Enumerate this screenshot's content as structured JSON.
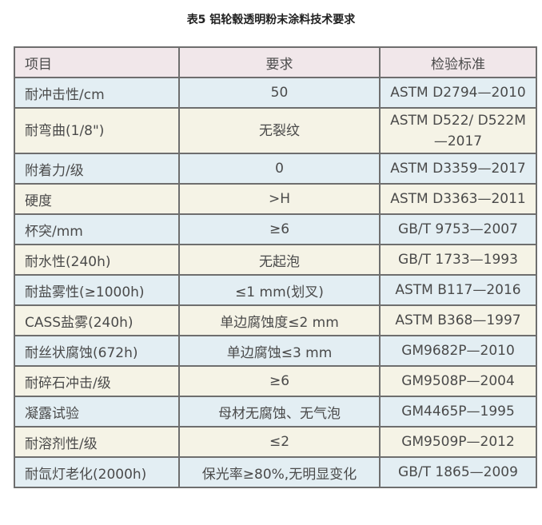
{
  "title": "表5 铝轮毂透明粉末涂料技术要求",
  "headers": [
    "项目",
    "要求",
    "检验标准"
  ],
  "colors": {
    "header": "#f1e7ea",
    "row_blue": "#e3eef3",
    "row_cream": "#f5f3e6",
    "border": "#6e6e6e"
  },
  "rows": [
    [
      "耐冲击性/cm",
      "50",
      "ASTM D2794—2010"
    ],
    [
      "耐弯曲(1/8\")",
      "无裂纹",
      "ASTM D522/ D522M—2017"
    ],
    [
      "附着力/级",
      "0",
      "ASTM D3359—2017"
    ],
    [
      "硬度",
      ">H",
      "ASTM D3363—2011"
    ],
    [
      "杯突/mm",
      "≥6",
      "GB/T 9753—2007"
    ],
    [
      "耐水性(240h)",
      "无起泡",
      "GB/T 1733—1993"
    ],
    [
      "耐盐雾性(≥1000h)",
      "≤1 mm(划叉)",
      "ASTM B117—2016"
    ],
    [
      "CASS盐雾(240h)",
      "单边腐蚀度≤2 mm",
      "ASTM B368—1997"
    ],
    [
      "耐丝状腐蚀(672h)",
      "单边腐蚀≤3 mm",
      "GM9682P—2010"
    ],
    [
      "耐碎石冲击/级",
      "≥6",
      "GM9508P—2004"
    ],
    [
      "凝露试验",
      "母材无腐蚀、无气泡",
      "GM4465P—1995"
    ],
    [
      "耐溶剂性/级",
      "≤2",
      "GM9509P—2012"
    ],
    [
      "耐氙灯老化(2000h)",
      "保光率≥80%,无明显变化",
      "GB/T 1865—2009"
    ]
  ]
}
